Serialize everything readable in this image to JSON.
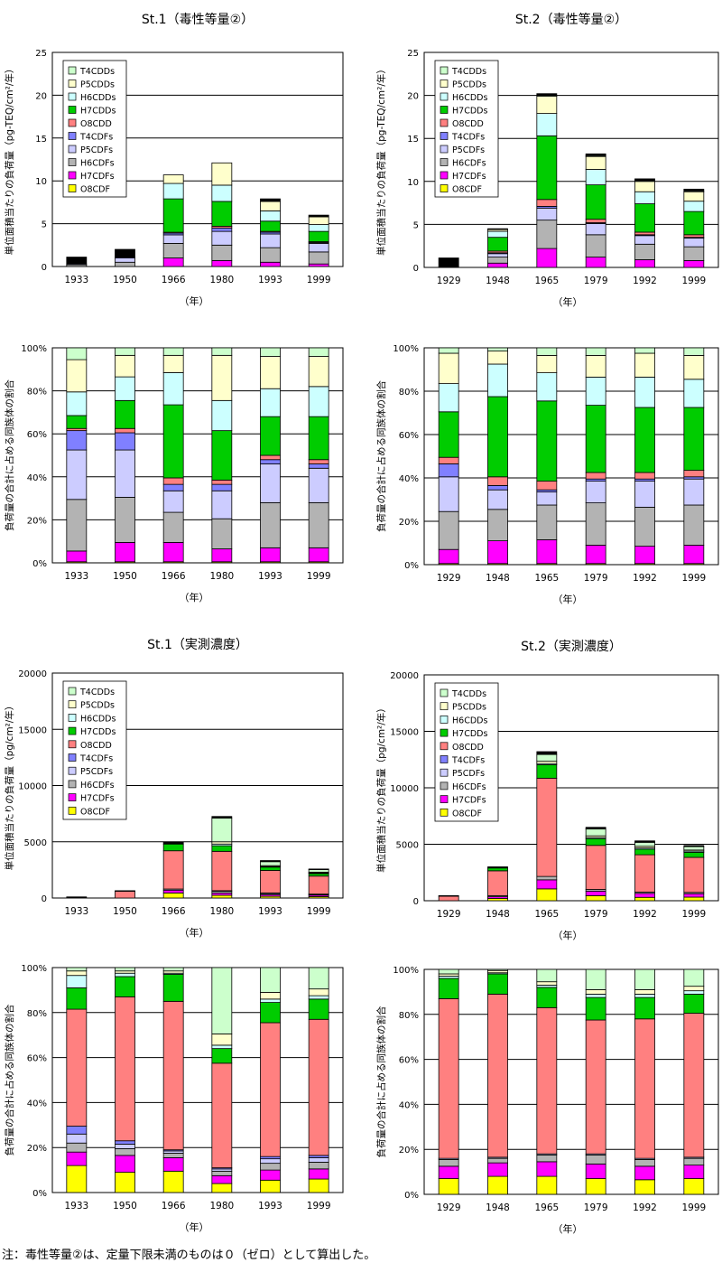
{
  "footnote": "注：毒性等量②は、定量下限未満のものは０（ゼロ）として算出した。",
  "legend_items": [
    "T4CDDs",
    "P5CDDs",
    "H6CDDs",
    "H7CDDs",
    "O8CDD",
    "T4CDFs",
    "P5CDFs",
    "H6CDFs",
    "H7CDFs",
    "O8CDF"
  ],
  "colors": {
    "T4CDDs": "#ccffcc",
    "P5CDDs": "#ffffcc",
    "H6CDDs": "#ccffff",
    "H7CDDs": "#00cc00",
    "O8CDD": "#ff8080",
    "T4CDFs": "#8080ff",
    "P5CDFs": "#ccccff",
    "H6CDFs": "#b3b3b3",
    "H7CDFs": "#ff00ff",
    "O8CDF": "#ffff00",
    "black": "#000000",
    "grid": "#000000"
  },
  "chart_data": [
    {
      "id": "st1-teq-abs",
      "type": "stacked-bar",
      "title": "St.1（毒性等量②）",
      "ylabel": "単位面積当たりの負荷量（pg-TEQ/cm²/年）",
      "xlabel": "（年）",
      "ylim": [
        0,
        25
      ],
      "yticks": [
        "0",
        "5",
        "10",
        "15",
        "20",
        "25"
      ],
      "legend": "top-left",
      "categories": [
        "1933",
        "1950",
        "1966",
        "1980",
        "1993",
        "1999"
      ],
      "series": [
        {
          "name": "O8CDF",
          "values": [
            0,
            0,
            0,
            0,
            0,
            0
          ]
        },
        {
          "name": "H7CDFs",
          "values": [
            0,
            0,
            1.0,
            0.7,
            0.5,
            0.3
          ]
        },
        {
          "name": "H6CDFs",
          "values": [
            0.2,
            0.5,
            1.7,
            1.8,
            1.7,
            1.4
          ]
        },
        {
          "name": "P5CDFs",
          "values": [
            0.1,
            0.5,
            1.0,
            1.6,
            1.6,
            1.0
          ]
        },
        {
          "name": "T4CDFs",
          "values": [
            0,
            0.1,
            0.2,
            0.4,
            0.2,
            0.1
          ]
        },
        {
          "name": "O8CDD",
          "values": [
            0,
            0,
            0.1,
            0.2,
            0.1,
            0.1
          ]
        },
        {
          "name": "H7CDDs",
          "values": [
            0,
            0,
            3.9,
            2.9,
            1.2,
            1.2
          ]
        },
        {
          "name": "H6CDDs",
          "values": [
            0,
            0,
            1.8,
            1.9,
            1.2,
            0.8
          ]
        },
        {
          "name": "P5CDDs",
          "values": [
            0,
            0,
            1.0,
            2.6,
            1.1,
            0.9
          ]
        },
        {
          "name": "T4CDDs",
          "values": [
            0,
            0,
            0,
            0,
            0,
            0
          ]
        },
        {
          "name": "black",
          "values": [
            0.8,
            0.9,
            0,
            0,
            0.3,
            0.2
          ]
        }
      ]
    },
    {
      "id": "st2-teq-abs",
      "type": "stacked-bar",
      "title": "St.2（毒性等量②）",
      "ylabel": "単位面積当たりの負荷量（pg-TEQ/cm²/年）",
      "xlabel": "（年）",
      "ylim": [
        0,
        25
      ],
      "yticks": [
        "0",
        "5",
        "10",
        "15",
        "20",
        "25"
      ],
      "legend": "top-left",
      "categories": [
        "1929",
        "1948",
        "1965",
        "1979",
        "1992",
        "1999"
      ],
      "series": [
        {
          "name": "O8CDF",
          "values": [
            0,
            0,
            0,
            0,
            0,
            0
          ]
        },
        {
          "name": "H7CDFs",
          "values": [
            0,
            0.5,
            2.2,
            1.2,
            0.9,
            0.8
          ]
        },
        {
          "name": "H6CDFs",
          "values": [
            0,
            0.7,
            3.3,
            2.6,
            1.8,
            1.6
          ]
        },
        {
          "name": "P5CDFs",
          "values": [
            0,
            0.4,
            1.4,
            1.3,
            1.0,
            1.0
          ]
        },
        {
          "name": "T4CDFs",
          "values": [
            0,
            0.1,
            0.2,
            0.1,
            0.1,
            0.1
          ]
        },
        {
          "name": "O8CDD",
          "values": [
            0,
            0.2,
            0.8,
            0.4,
            0.3,
            0.3
          ]
        },
        {
          "name": "H7CDDs",
          "values": [
            0,
            1.6,
            7.4,
            4.0,
            3.3,
            2.7
          ]
        },
        {
          "name": "H6CDDs",
          "values": [
            0,
            0.7,
            2.6,
            1.8,
            1.4,
            1.2
          ]
        },
        {
          "name": "P5CDDs",
          "values": [
            0,
            0.2,
            2.0,
            1.5,
            1.2,
            1.1
          ]
        },
        {
          "name": "T4CDDs",
          "values": [
            0,
            0,
            0.1,
            0.1,
            0.1,
            0.1
          ]
        },
        {
          "name": "black",
          "values": [
            1.1,
            0.1,
            0.2,
            0.2,
            0.2,
            0.2
          ]
        }
      ]
    },
    {
      "id": "st1-teq-pct",
      "type": "stacked-bar-percent",
      "ylabel": "負荷量の合計に占める同族体の割合",
      "xlabel": "（年）",
      "ylim": [
        0,
        100
      ],
      "yticks": [
        "0%",
        "20%",
        "40%",
        "60%",
        "80%",
        "100%"
      ],
      "categories": [
        "1933",
        "1950",
        "1966",
        "1980",
        "1993",
        "1999"
      ],
      "series": [
        {
          "name": "O8CDF",
          "values": [
            0.5,
            0.5,
            0.5,
            0.5,
            0.5,
            0.5
          ]
        },
        {
          "name": "H7CDFs",
          "values": [
            5,
            9,
            9,
            6,
            6.5,
            6.5
          ]
        },
        {
          "name": "H6CDFs",
          "values": [
            24,
            21,
            14,
            14,
            21,
            21
          ]
        },
        {
          "name": "P5CDFs",
          "values": [
            23,
            22,
            10,
            13,
            18,
            16
          ]
        },
        {
          "name": "T4CDFs",
          "values": [
            9,
            8,
            3,
            3,
            2,
            2
          ]
        },
        {
          "name": "O8CDD",
          "values": [
            1,
            2,
            3,
            2,
            2,
            2
          ]
        },
        {
          "name": "H7CDDs",
          "values": [
            6,
            13,
            34,
            23,
            18,
            20
          ]
        },
        {
          "name": "H6CDDs",
          "values": [
            11,
            11,
            15,
            14,
            13,
            14
          ]
        },
        {
          "name": "P5CDDs",
          "values": [
            15,
            10,
            8,
            21,
            15,
            14
          ]
        },
        {
          "name": "T4CDDs",
          "values": [
            5.5,
            3.5,
            3.5,
            3.5,
            4,
            4
          ]
        }
      ]
    },
    {
      "id": "st2-teq-pct",
      "type": "stacked-bar-percent",
      "ylabel": "負荷量の合計に占める同族体の割合",
      "xlabel": "（年）",
      "ylim": [
        0,
        100
      ],
      "yticks": [
        "0%",
        "20%",
        "40%",
        "60%",
        "80%",
        "100%"
      ],
      "categories": [
        "1929",
        "1948",
        "1965",
        "1979",
        "1992",
        "1999"
      ],
      "series": [
        {
          "name": "O8CDF",
          "values": [
            0.5,
            0.5,
            0.5,
            0.5,
            0.5,
            0.5
          ]
        },
        {
          "name": "H7CDFs",
          "values": [
            6.5,
            10.5,
            11,
            8.5,
            8,
            8.5
          ]
        },
        {
          "name": "H6CDFs",
          "values": [
            17.5,
            14.5,
            16,
            19.5,
            18,
            18.5
          ]
        },
        {
          "name": "P5CDFs",
          "values": [
            16,
            9,
            6,
            10,
            12,
            12
          ]
        },
        {
          "name": "T4CDFs",
          "values": [
            6,
            2,
            1,
            1,
            1,
            1
          ]
        },
        {
          "name": "O8CDD",
          "values": [
            3,
            4,
            4,
            3,
            3,
            3
          ]
        },
        {
          "name": "H7CDDs",
          "values": [
            21,
            37,
            37,
            31,
            30,
            29
          ]
        },
        {
          "name": "H6CDDs",
          "values": [
            13,
            15,
            13,
            13,
            14,
            13
          ]
        },
        {
          "name": "P5CDDs",
          "values": [
            14,
            6,
            8,
            10,
            11,
            11
          ]
        },
        {
          "name": "T4CDDs",
          "values": [
            2.5,
            1.5,
            3.5,
            3.5,
            2.5,
            3.5
          ]
        }
      ]
    },
    {
      "id": "st1-conc-abs",
      "type": "stacked-bar",
      "title": "St.1（実測濃度）",
      "ylabel": "単位面積当たりの負荷量（pg/cm²/年）",
      "xlabel": "（年）",
      "ylim": [
        0,
        20000
      ],
      "yticks": [
        "0",
        "5000",
        "10000",
        "15000",
        "20000"
      ],
      "legend": "top-left",
      "categories": [
        "1933",
        "1950",
        "1966",
        "1980",
        "1993",
        "1999"
      ],
      "series": [
        {
          "name": "O8CDF",
          "values": [
            0,
            0,
            450,
            250,
            150,
            130
          ]
        },
        {
          "name": "H7CDFs",
          "values": [
            0,
            0,
            250,
            200,
            150,
            130
          ]
        },
        {
          "name": "H6CDFs",
          "values": [
            0,
            0,
            100,
            150,
            100,
            60
          ]
        },
        {
          "name": "P5CDFs",
          "values": [
            0,
            0,
            0,
            50,
            50,
            30
          ]
        },
        {
          "name": "T4CDFs",
          "values": [
            0,
            0,
            0,
            0,
            0,
            0
          ]
        },
        {
          "name": "O8CDD",
          "values": [
            0,
            600,
            3400,
            3500,
            2000,
            1600
          ]
        },
        {
          "name": "H7CDDs",
          "values": [
            0,
            0,
            600,
            500,
            300,
            220
          ]
        },
        {
          "name": "H6CDDs",
          "values": [
            0,
            0,
            0,
            150,
            50,
            50
          ]
        },
        {
          "name": "P5CDDs",
          "values": [
            0,
            0,
            0,
            200,
            80,
            80
          ]
        },
        {
          "name": "T4CDDs",
          "values": [
            0,
            0,
            0,
            2100,
            350,
            230
          ]
        },
        {
          "name": "black",
          "values": [
            100,
            50,
            150,
            150,
            100,
            50
          ]
        }
      ]
    },
    {
      "id": "st2-conc-abs",
      "type": "stacked-bar",
      "title": "St.2（実測濃度）",
      "ylabel": "単位面積当たりの負荷量（pg/cm²/年）",
      "xlabel": "（年）",
      "ylim": [
        0,
        20000
      ],
      "yticks": [
        "0",
        "5000",
        "10000",
        "15000",
        "20000"
      ],
      "legend": "top-left",
      "categories": [
        "1929",
        "1948",
        "1965",
        "1979",
        "1992",
        "1999"
      ],
      "series": [
        {
          "name": "O8CDF",
          "values": [
            0,
            200,
            1050,
            450,
            300,
            320
          ]
        },
        {
          "name": "H7CDFs",
          "values": [
            0,
            150,
            800,
            400,
            350,
            300
          ]
        },
        {
          "name": "H6CDFs",
          "values": [
            0,
            100,
            300,
            150,
            120,
            120
          ]
        },
        {
          "name": "P5CDFs",
          "values": [
            0,
            0,
            0,
            0,
            0,
            0
          ]
        },
        {
          "name": "T4CDFs",
          "values": [
            0,
            0,
            0,
            0,
            0,
            0
          ]
        },
        {
          "name": "O8CDD",
          "values": [
            400,
            2200,
            8700,
            3900,
            3300,
            3100
          ]
        },
        {
          "name": "H7CDDs",
          "values": [
            0,
            250,
            1200,
            600,
            500,
            450
          ]
        },
        {
          "name": "H6CDDs",
          "values": [
            0,
            0,
            100,
            100,
            100,
            100
          ]
        },
        {
          "name": "P5CDDs",
          "values": [
            0,
            0,
            200,
            150,
            150,
            100
          ]
        },
        {
          "name": "T4CDDs",
          "values": [
            0,
            0,
            600,
            600,
            350,
            300
          ]
        },
        {
          "name": "black",
          "values": [
            50,
            100,
            250,
            150,
            130,
            100
          ]
        }
      ]
    },
    {
      "id": "st1-conc-pct",
      "type": "stacked-bar-percent",
      "ylabel": "負荷量の合計に占める同族体の割合",
      "xlabel": "（年）",
      "ylim": [
        0,
        100
      ],
      "yticks": [
        "0%",
        "20%",
        "40%",
        "60%",
        "80%",
        "100%"
      ],
      "categories": [
        "1933",
        "1950",
        "1966",
        "1980",
        "1993",
        "1999"
      ],
      "series": [
        {
          "name": "O8CDF",
          "values": [
            12,
            9,
            9.5,
            4,
            5.5,
            6
          ]
        },
        {
          "name": "H7CDFs",
          "values": [
            6,
            7.5,
            6,
            3.5,
            4.5,
            4.5
          ]
        },
        {
          "name": "H6CDFs",
          "values": [
            4,
            3,
            2,
            2,
            3,
            3
          ]
        },
        {
          "name": "P5CDFs",
          "values": [
            4,
            2,
            1,
            1,
            2,
            2
          ]
        },
        {
          "name": "T4CDFs",
          "values": [
            3.5,
            1.5,
            0.5,
            0.5,
            1,
            1
          ]
        },
        {
          "name": "O8CDD",
          "values": [
            52,
            64,
            66,
            46.5,
            59.5,
            60.5
          ]
        },
        {
          "name": "H7CDDs",
          "values": [
            9.5,
            9,
            12,
            6.5,
            9,
            9
          ]
        },
        {
          "name": "H6CDDs",
          "values": [
            5.5,
            1.5,
            0.5,
            1.5,
            1.5,
            1.5
          ]
        },
        {
          "name": "P5CDDs",
          "values": [
            2,
            1,
            1,
            5,
            3,
            3
          ]
        },
        {
          "name": "T4CDDs",
          "values": [
            1.5,
            1.5,
            1.5,
            29.5,
            11,
            9.5
          ]
        }
      ]
    },
    {
      "id": "st2-conc-pct",
      "type": "stacked-bar-percent",
      "ylabel": "負荷量の合計に占める同族体の割合",
      "xlabel": "（年）",
      "ylim": [
        0,
        100
      ],
      "yticks": [
        "0%",
        "20%",
        "40%",
        "60%",
        "80%",
        "100%"
      ],
      "categories": [
        "1929",
        "1948",
        "1965",
        "1979",
        "1992",
        "1999"
      ],
      "series": [
        {
          "name": "O8CDF",
          "values": [
            7,
            8,
            8,
            7,
            6.5,
            7
          ]
        },
        {
          "name": "H7CDFs",
          "values": [
            5.5,
            6,
            6.5,
            6.5,
            6,
            6
          ]
        },
        {
          "name": "H6CDFs",
          "values": [
            3,
            2,
            3,
            4,
            3,
            3
          ]
        },
        {
          "name": "P5CDFs",
          "values": [
            0.5,
            0.5,
            0.5,
            0.5,
            0.5,
            0.5
          ]
        },
        {
          "name": "T4CDFs",
          "values": [
            0,
            0,
            0,
            0,
            0,
            0
          ]
        },
        {
          "name": "O8CDD",
          "values": [
            71,
            72.5,
            65,
            59.5,
            62,
            64
          ]
        },
        {
          "name": "H7CDDs",
          "values": [
            9,
            9,
            9,
            10,
            9.5,
            8.5
          ]
        },
        {
          "name": "H6CDDs",
          "values": [
            1,
            0.5,
            1,
            1.5,
            1.5,
            1.5
          ]
        },
        {
          "name": "P5CDDs",
          "values": [
            1,
            1,
            1.5,
            2,
            2,
            2
          ]
        },
        {
          "name": "T4CDDs",
          "values": [
            2,
            0.5,
            5.5,
            9,
            9,
            7.5
          ]
        }
      ]
    }
  ]
}
